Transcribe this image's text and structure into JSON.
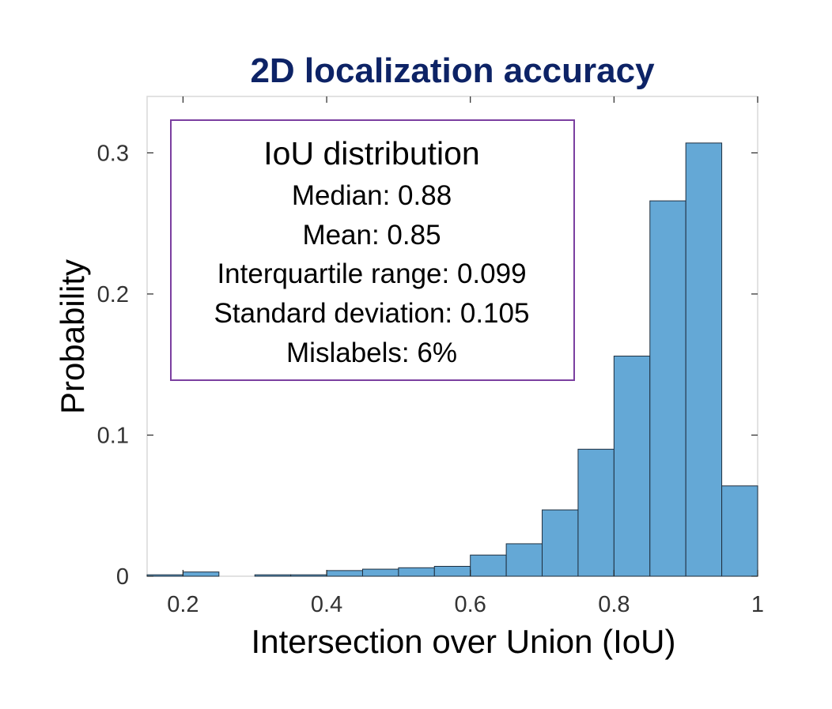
{
  "chart_data": {
    "type": "bar",
    "title": "2D localization accuracy",
    "xlabel": "Intersection over Union (IoU)",
    "ylabel": "Probability",
    "xlim": [
      0.15,
      1.0
    ],
    "ylim": [
      0,
      0.34
    ],
    "xticks": [
      0.2,
      0.4,
      0.6,
      0.8,
      1.0
    ],
    "xtick_labels": [
      "0.2",
      "0.4",
      "0.6",
      "0.8",
      "1"
    ],
    "yticks": [
      0,
      0.1,
      0.2,
      0.3
    ],
    "ytick_labels": [
      "0",
      "0.1",
      "0.2",
      "0.3"
    ],
    "bin_width": 0.05,
    "bin_edges": [
      0.15,
      0.2,
      0.25,
      0.3,
      0.35,
      0.4,
      0.45,
      0.5,
      0.55,
      0.6,
      0.65,
      0.7,
      0.75,
      0.8,
      0.85,
      0.9,
      0.95,
      1.0
    ],
    "values": [
      0.001,
      0.003,
      0.0,
      0.001,
      0.001,
      0.004,
      0.005,
      0.006,
      0.007,
      0.015,
      0.023,
      0.047,
      0.09,
      0.156,
      0.266,
      0.307,
      0.064
    ],
    "bar_color": "#64a8d6",
    "bar_edge_color": "#1f2f3f",
    "grid": false,
    "annotation": {
      "title": "IoU distribution",
      "lines": [
        "Median: 0.88",
        "Mean: 0.85",
        "Interquartile range: 0.099",
        "Standard deviation: 0.105",
        "Mislabels: 6%"
      ],
      "border_color": "#7b3fa0",
      "placement": "top-left"
    }
  }
}
